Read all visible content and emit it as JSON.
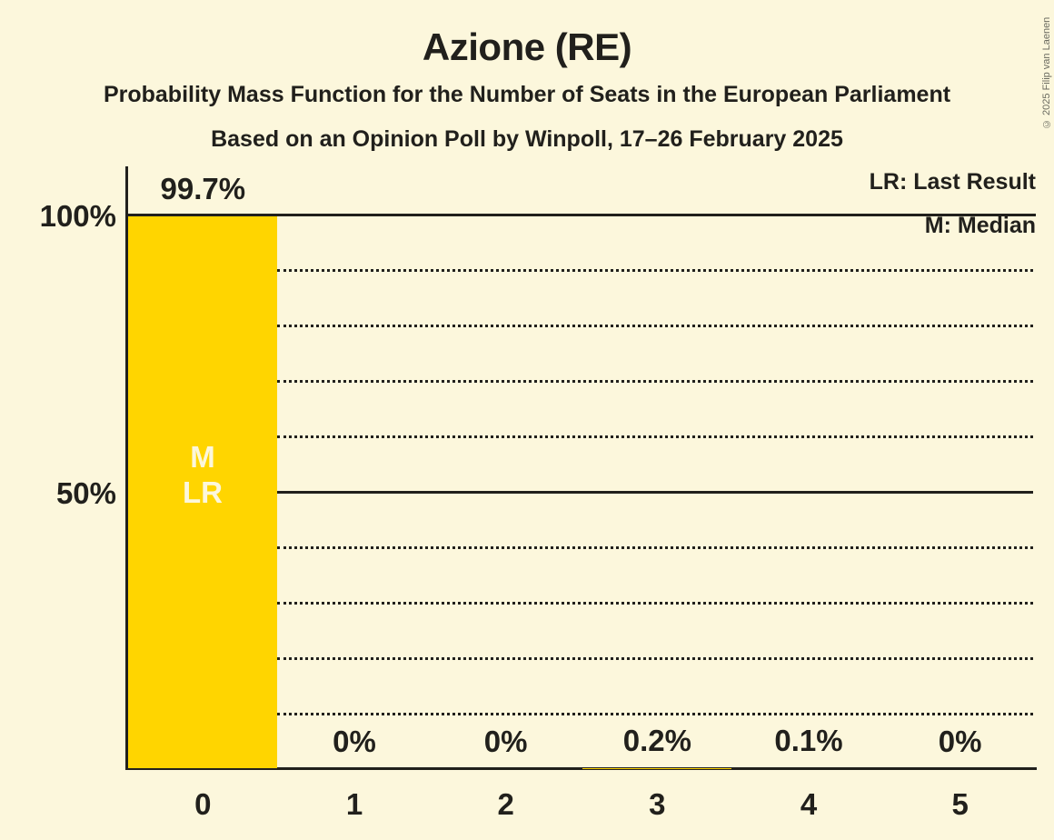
{
  "title": "Azione (RE)",
  "subtitle": "Probability Mass Function for the Number of Seats in the European Parliament",
  "poll_info": "Based on an Opinion Poll by Winpoll, 17–26 February 2025",
  "copyright": "© 2025 Filip van Laenen",
  "legend": {
    "last_result": "LR: Last Result",
    "median": "M: Median"
  },
  "y_axis_labels": {
    "p100": "100%",
    "p50": "50%"
  },
  "bar_annotations": {
    "median": "M",
    "last_result": "LR"
  },
  "colors": {
    "background": "#FCF7DC",
    "bar": "#FFD500",
    "text": "#21201C",
    "bar_text": "#FCF7DC",
    "copyright_text": "#6B6B60"
  },
  "chart_data": {
    "type": "bar",
    "title": "Azione (RE)",
    "categories": [
      "0",
      "1",
      "2",
      "3",
      "4",
      "5"
    ],
    "values": [
      99.7,
      0,
      0,
      0.2,
      0.1,
      0
    ],
    "value_labels": [
      "99.7%",
      "0%",
      "0%",
      "0.2%",
      "0.1%",
      "0%"
    ],
    "xlabel": "",
    "ylabel": "",
    "ylim": [
      0,
      100
    ],
    "y_tick_labels": [
      "100%",
      "50%"
    ],
    "dotted_gridlines_pct": [
      10,
      20,
      30,
      40,
      60,
      70,
      80,
      90
    ],
    "solid_gridlines_pct": [
      50,
      100
    ],
    "legend_entries": [
      "LR: Last Result",
      "M: Median"
    ],
    "median_seats": "0",
    "last_result_seats": "0",
    "grid": "dotted-horizontal"
  }
}
